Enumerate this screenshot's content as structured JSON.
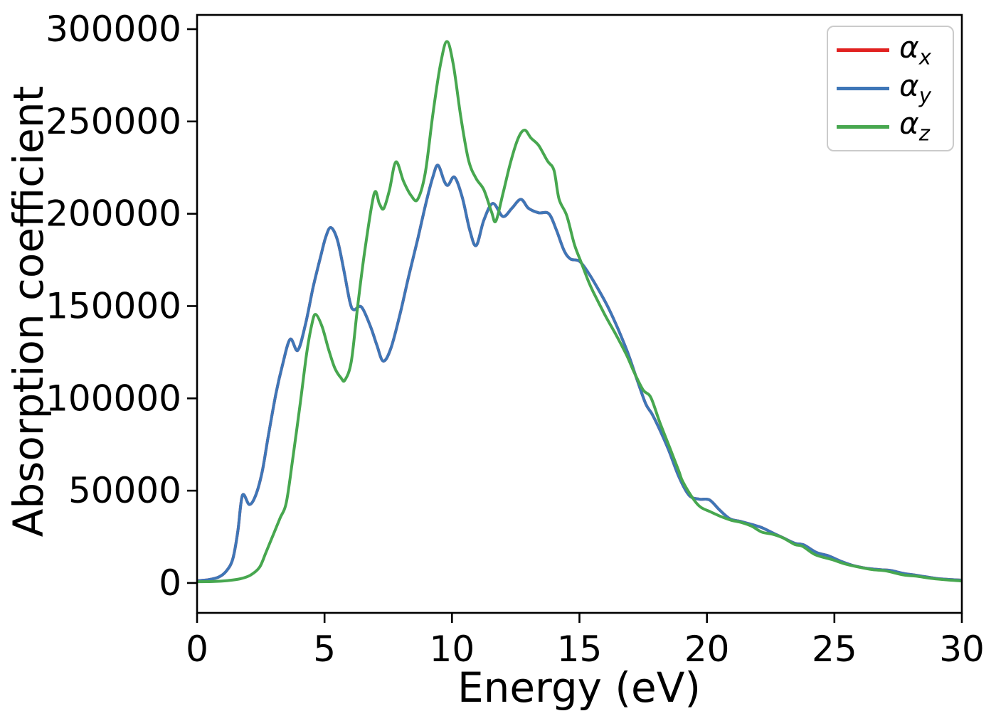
{
  "figure": {
    "background": "#ffffff"
  },
  "chart_data": {
    "type": "line",
    "title": "",
    "xlabel": "Energy (eV)",
    "ylabel": "Absorption coefficient",
    "xlim": [
      0,
      30
    ],
    "ylim": [
      -16200,
      307700
    ],
    "xticks": [
      0,
      5,
      10,
      15,
      20,
      25,
      30
    ],
    "yticks": [
      0,
      50000,
      100000,
      150000,
      200000,
      250000,
      300000
    ],
    "grid": false,
    "legend_position": "upper right",
    "axis_color": "#000000",
    "series": [
      {
        "name": "alpha_x",
        "legend_base": "α",
        "legend_sub": "x",
        "color": "#e12120",
        "note_visibility": "hidden exactly beneath alpha_y (identical values)",
        "x": [
          0,
          0.45,
          0.85,
          1.15,
          1.4,
          1.6,
          1.78,
          2.05,
          2.3,
          2.55,
          2.8,
          3.1,
          3.35,
          3.65,
          3.95,
          4.25,
          4.55,
          4.85,
          5.05,
          5.25,
          5.5,
          5.75,
          6.0,
          6.15,
          6.45,
          6.8,
          7.05,
          7.3,
          7.6,
          7.95,
          8.3,
          8.65,
          9.0,
          9.25,
          9.45,
          9.7,
          9.85,
          10.1,
          10.4,
          10.7,
          10.95,
          11.25,
          11.6,
          12.0,
          12.35,
          12.7,
          13.0,
          13.4,
          13.8,
          14.1,
          14.4,
          14.65,
          15.0,
          15.35,
          15.7,
          16.1,
          16.5,
          16.9,
          17.25,
          17.6,
          17.85,
          18.15,
          18.5,
          18.9,
          19.3,
          19.7,
          20.1,
          20.5,
          20.9,
          21.3,
          21.8,
          22.15,
          22.6,
          23.0,
          23.45,
          23.8,
          24.3,
          24.75,
          25.25,
          25.7,
          26.25,
          26.8,
          27.2,
          27.7,
          28.1,
          28.6,
          29.1,
          29.6,
          30
        ],
        "y": [
          1200,
          1800,
          3200,
          6500,
          13000,
          28000,
          47500,
          42500,
          47500,
          60000,
          80000,
          103000,
          118000,
          132000,
          126000,
          140000,
          160000,
          177000,
          187500,
          192500,
          186000,
          170000,
          152000,
          148000,
          149500,
          139000,
          129000,
          120200,
          127000,
          145000,
          166000,
          186000,
          207000,
          220000,
          226300,
          217500,
          215500,
          219800,
          209000,
          191000,
          182800,
          196500,
          205600,
          198500,
          203000,
          207800,
          203000,
          200500,
          200000,
          191000,
          180000,
          175500,
          174300,
          168000,
          160000,
          150000,
          138000,
          124500,
          110500,
          97000,
          91500,
          83000,
          72000,
          57500,
          47500,
          45400,
          45000,
          39500,
          34800,
          33400,
          31500,
          30000,
          27000,
          24400,
          21500,
          20600,
          16500,
          14800,
          11800,
          9600,
          8000,
          7200,
          6800,
          5200,
          4400,
          3300,
          2300,
          1800,
          1500
        ]
      },
      {
        "name": "alpha_y",
        "legend_base": "α",
        "legend_sub": "y",
        "color": "#3e76b7",
        "x": [
          0,
          0.45,
          0.85,
          1.15,
          1.4,
          1.6,
          1.78,
          2.05,
          2.3,
          2.55,
          2.8,
          3.1,
          3.35,
          3.65,
          3.95,
          4.25,
          4.55,
          4.85,
          5.05,
          5.25,
          5.5,
          5.75,
          6.0,
          6.15,
          6.45,
          6.8,
          7.05,
          7.3,
          7.6,
          7.95,
          8.3,
          8.65,
          9.0,
          9.25,
          9.45,
          9.7,
          9.85,
          10.1,
          10.4,
          10.7,
          10.95,
          11.25,
          11.6,
          12.0,
          12.35,
          12.7,
          13.0,
          13.4,
          13.8,
          14.1,
          14.4,
          14.65,
          15.0,
          15.35,
          15.7,
          16.1,
          16.5,
          16.9,
          17.25,
          17.6,
          17.85,
          18.15,
          18.5,
          18.9,
          19.3,
          19.7,
          20.1,
          20.5,
          20.9,
          21.3,
          21.8,
          22.15,
          22.6,
          23.0,
          23.45,
          23.8,
          24.3,
          24.75,
          25.25,
          25.7,
          26.25,
          26.8,
          27.2,
          27.7,
          28.1,
          28.6,
          29.1,
          29.6,
          30
        ],
        "y": [
          1200,
          1800,
          3200,
          6500,
          13000,
          28000,
          47500,
          42500,
          47500,
          60000,
          80000,
          103000,
          118000,
          132000,
          126000,
          140000,
          160000,
          177000,
          187500,
          192500,
          186000,
          170000,
          152000,
          148000,
          149500,
          139000,
          129000,
          120200,
          127000,
          145000,
          166000,
          186000,
          207000,
          220000,
          226300,
          217500,
          215500,
          219800,
          209000,
          191000,
          182800,
          196500,
          205600,
          198500,
          203000,
          207800,
          203000,
          200500,
          200000,
          191000,
          180000,
          175500,
          174300,
          168000,
          160000,
          150000,
          138000,
          124500,
          110500,
          97000,
          91500,
          83000,
          72000,
          57500,
          47500,
          45400,
          45000,
          39500,
          34800,
          33400,
          31500,
          30000,
          27000,
          24400,
          21500,
          20600,
          16500,
          14800,
          11800,
          9600,
          8000,
          7200,
          6800,
          5200,
          4400,
          3300,
          2300,
          1800,
          1500
        ]
      },
      {
        "name": "alpha_z",
        "legend_base": "α",
        "legend_sub": "z",
        "color": "#47a74f",
        "x": [
          0,
          0.6,
          1.2,
          1.7,
          2.1,
          2.45,
          2.7,
          3.0,
          3.25,
          3.5,
          3.75,
          4.05,
          4.3,
          4.5,
          4.65,
          4.9,
          5.15,
          5.4,
          5.65,
          5.8,
          6.05,
          6.3,
          6.6,
          6.95,
          7.15,
          7.32,
          7.55,
          7.8,
          8.1,
          8.4,
          8.65,
          8.95,
          9.25,
          9.55,
          9.8,
          10.05,
          10.35,
          10.65,
          10.95,
          11.25,
          11.55,
          11.72,
          12.0,
          12.3,
          12.6,
          12.85,
          13.1,
          13.4,
          13.75,
          14.0,
          14.2,
          14.5,
          14.8,
          15.05,
          15.35,
          15.55,
          16.0,
          16.45,
          16.85,
          17.15,
          17.5,
          17.8,
          18.15,
          18.55,
          18.9,
          19.05,
          19.45,
          19.75,
          20.15,
          20.55,
          20.95,
          21.35,
          21.75,
          22.15,
          22.6,
          23.0,
          23.45,
          23.75,
          24.25,
          24.9,
          25.45,
          25.95,
          26.5,
          27.0,
          27.7,
          28.2,
          28.85,
          29.4,
          30
        ],
        "y": [
          700,
          800,
          1300,
          2300,
          4300,
          8500,
          16500,
          26500,
          35000,
          43500,
          67000,
          97500,
          124500,
          140000,
          145500,
          139000,
          127000,
          116500,
          111000,
          109900,
          120000,
          150000,
          182000,
          211000,
          205500,
          202800,
          213000,
          228100,
          217500,
          209800,
          207800,
          222000,
          254000,
          281000,
          293300,
          281000,
          252000,
          229000,
          219000,
          213000,
          201000,
          196000,
          211000,
          228000,
          241000,
          245300,
          241000,
          237000,
          228500,
          223500,
          208000,
          199000,
          183500,
          174300,
          163500,
          157400,
          145200,
          134000,
          123400,
          114000,
          104500,
          100500,
          87000,
          73000,
          60500,
          55000,
          45800,
          41100,
          38500,
          36000,
          34000,
          32800,
          30800,
          27600,
          26300,
          24300,
          20800,
          19900,
          15300,
          12700,
          10200,
          8600,
          7200,
          6600,
          4400,
          3700,
          2400,
          1700,
          1100
        ]
      }
    ]
  }
}
